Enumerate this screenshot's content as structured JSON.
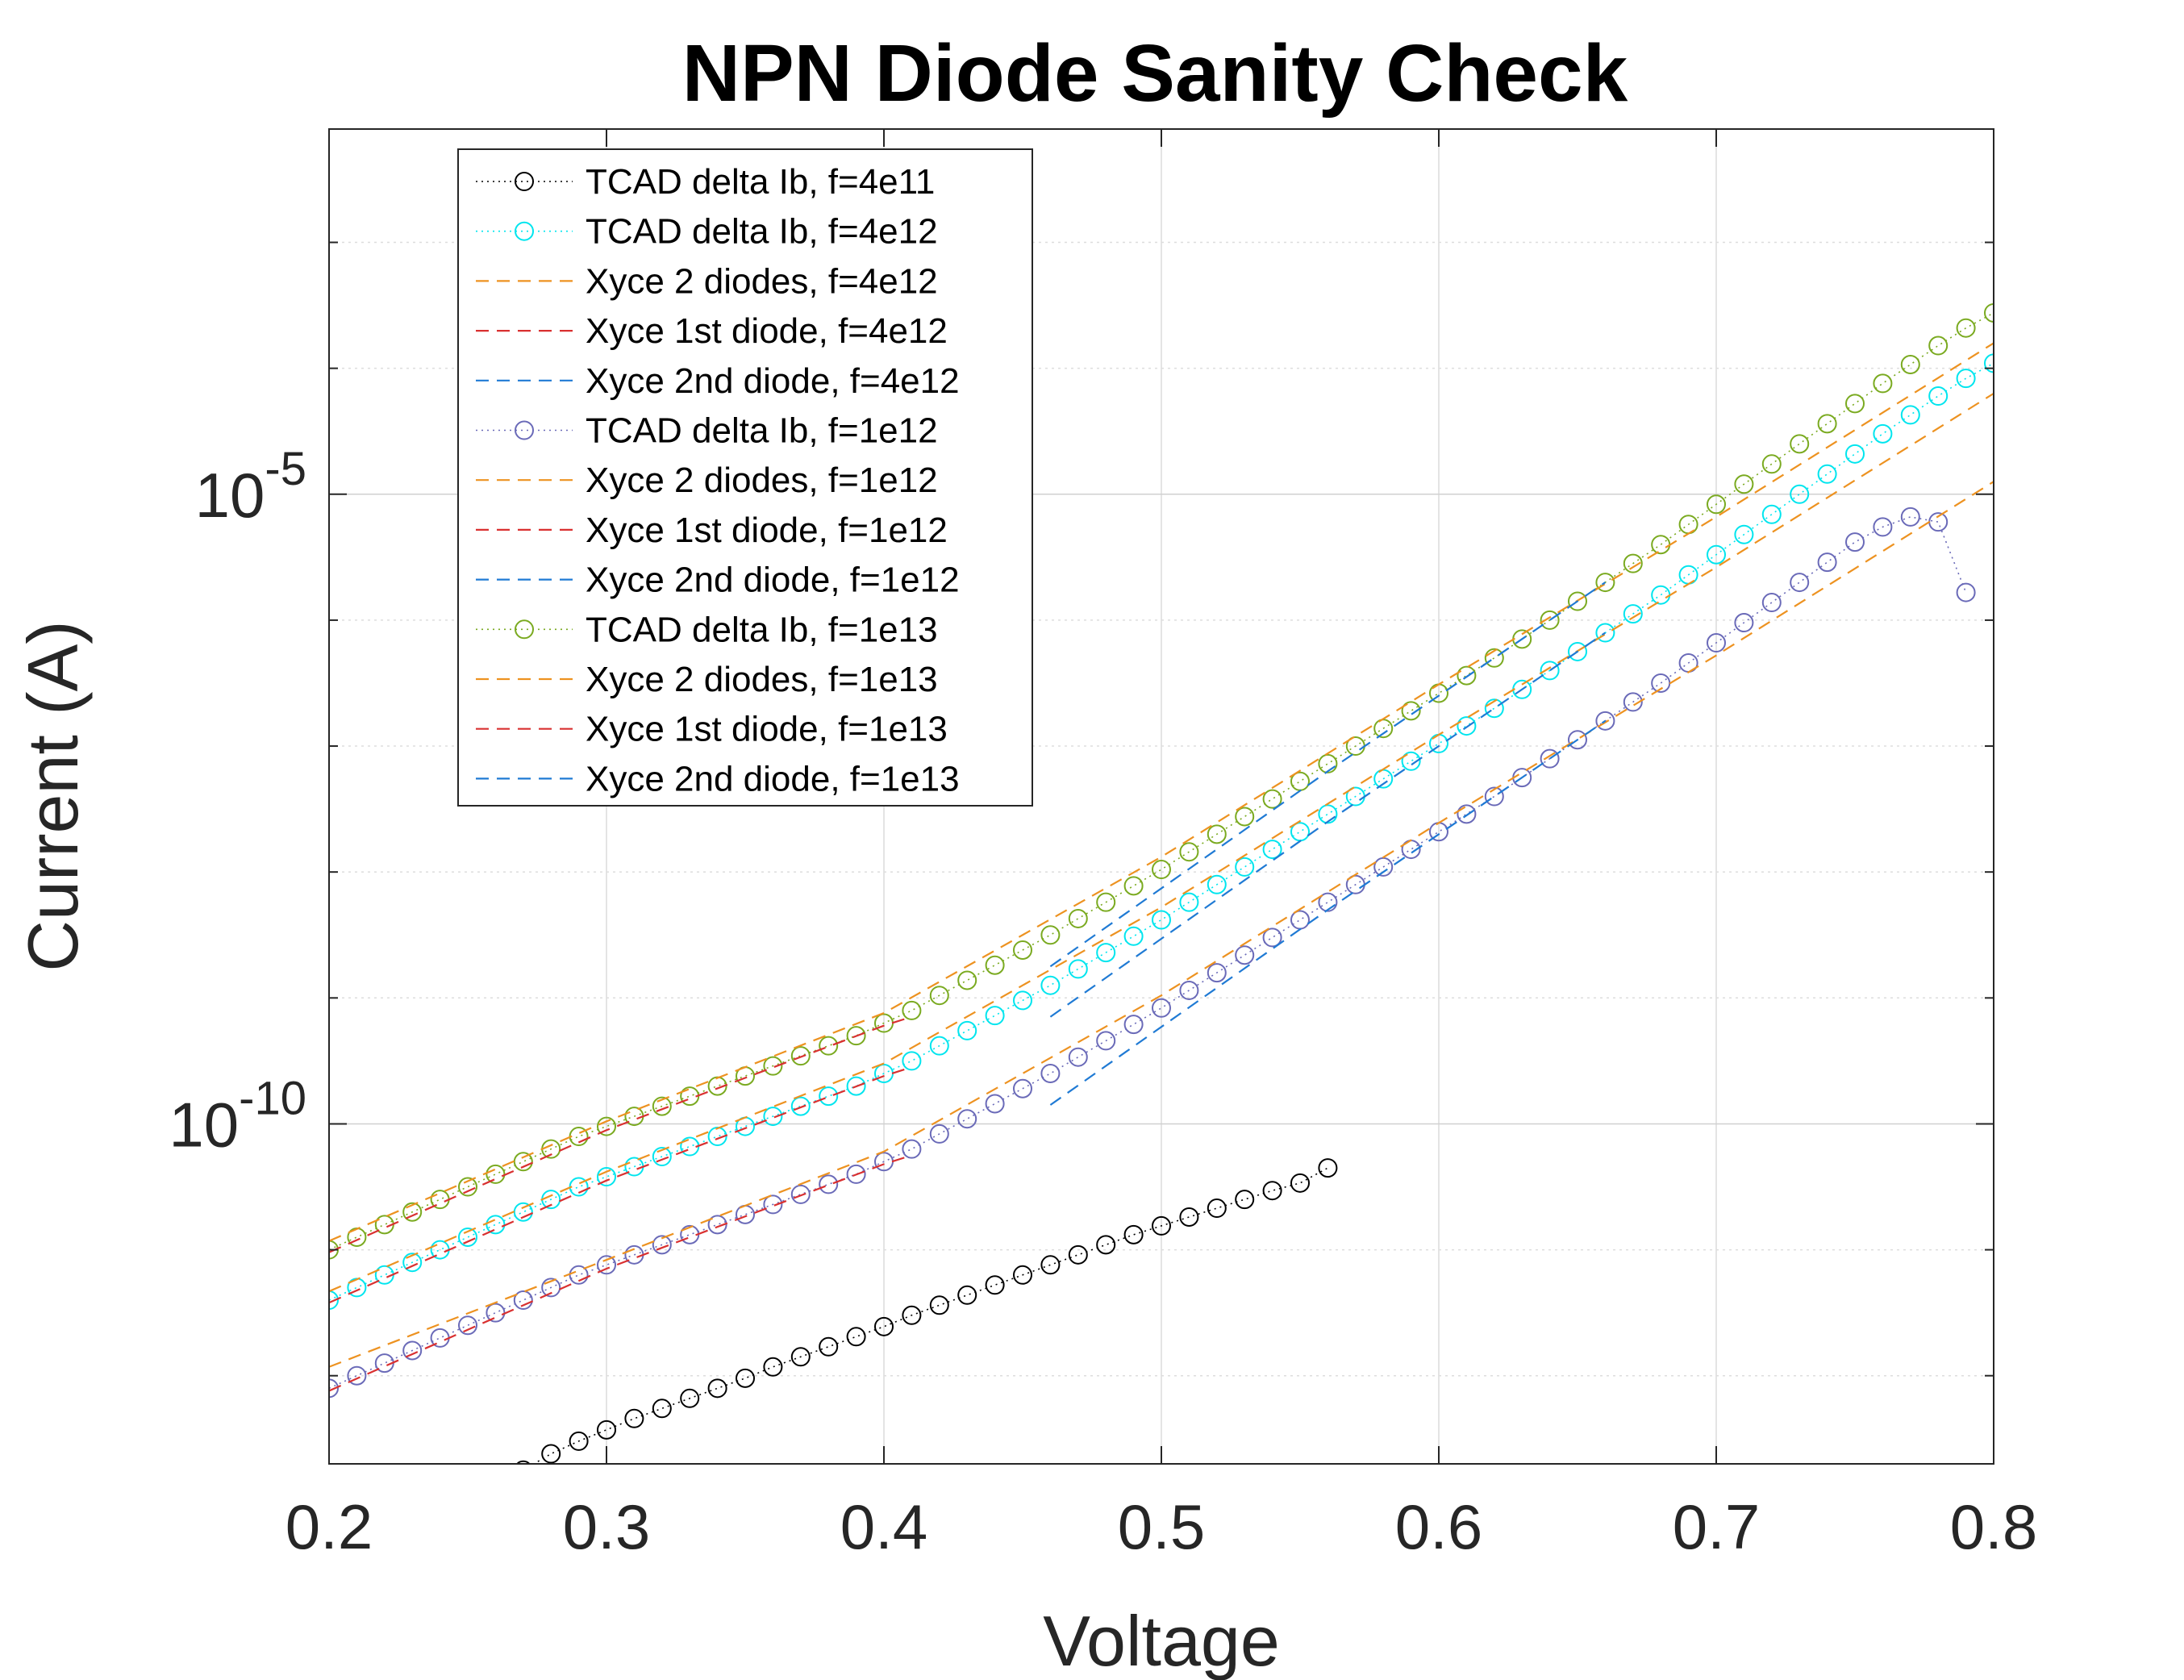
{
  "chart_data": {
    "type": "line",
    "title": "NPN Diode Sanity Check",
    "xlabel": "Voltage",
    "ylabel": "Current (A)",
    "xlim": [
      0.2,
      0.8
    ],
    "ylim_log10": [
      -12.7,
      -2.1
    ],
    "yscale": "log",
    "grid": true,
    "legend_position": "top-left",
    "x_ticks": [
      "0.2",
      "0.3",
      "0.4",
      "0.5",
      "0.6",
      "0.7",
      "0.8"
    ],
    "y_ticks": [
      {
        "base": "10",
        "exp": "-5"
      },
      {
        "base": "10",
        "exp": "-10"
      }
    ],
    "series": [
      {
        "name": "TCAD delta Ib, f=4e11",
        "style": "dotted-marker",
        "color": "#000000",
        "x": [
          0.27,
          0.28,
          0.29,
          0.3,
          0.31,
          0.32,
          0.33,
          0.34,
          0.35,
          0.36,
          0.37,
          0.38,
          0.39,
          0.4,
          0.41,
          0.42,
          0.43,
          0.44,
          0.45,
          0.46,
          0.47,
          0.48,
          0.49,
          0.5,
          0.51,
          0.52,
          0.53,
          0.54,
          0.55,
          0.56
        ],
        "log10_y": [
          -12.75,
          -12.62,
          -12.52,
          -12.43,
          -12.34,
          -12.26,
          -12.18,
          -12.1,
          -12.02,
          -11.93,
          -11.85,
          -11.77,
          -11.69,
          -11.61,
          -11.52,
          -11.44,
          -11.36,
          -11.28,
          -11.2,
          -11.12,
          -11.04,
          -10.96,
          -10.88,
          -10.81,
          -10.74,
          -10.67,
          -10.6,
          -10.53,
          -10.47,
          -10.35
        ]
      },
      {
        "name": "TCAD delta Ib, f=4e12",
        "style": "dotted-marker",
        "color": "#00e5ee",
        "x": [
          0.2,
          0.21,
          0.22,
          0.23,
          0.24,
          0.25,
          0.26,
          0.27,
          0.28,
          0.29,
          0.3,
          0.31,
          0.32,
          0.33,
          0.34,
          0.35,
          0.36,
          0.37,
          0.38,
          0.39,
          0.4,
          0.41,
          0.42,
          0.43,
          0.44,
          0.45,
          0.46,
          0.47,
          0.48,
          0.49,
          0.5,
          0.51,
          0.52,
          0.53,
          0.54,
          0.55,
          0.56,
          0.57,
          0.58,
          0.59,
          0.6,
          0.61,
          0.62,
          0.63,
          0.64,
          0.65,
          0.66,
          0.67,
          0.68,
          0.69,
          0.7,
          0.71,
          0.72,
          0.73,
          0.74,
          0.75,
          0.76,
          0.77,
          0.78,
          0.79,
          0.8
        ],
        "log10_y": [
          -11.4,
          -11.3,
          -11.2,
          -11.1,
          -11.0,
          -10.9,
          -10.8,
          -10.7,
          -10.6,
          -10.5,
          -10.42,
          -10.34,
          -10.26,
          -10.18,
          -10.1,
          -10.02,
          -9.94,
          -9.86,
          -9.78,
          -9.7,
          -9.6,
          -9.5,
          -9.38,
          -9.26,
          -9.14,
          -9.02,
          -8.9,
          -8.77,
          -8.64,
          -8.51,
          -8.38,
          -8.24,
          -8.1,
          -7.96,
          -7.82,
          -7.68,
          -7.54,
          -7.4,
          -7.26,
          -7.12,
          -6.98,
          -6.84,
          -6.7,
          -6.55,
          -6.4,
          -6.25,
          -6.1,
          -5.95,
          -5.8,
          -5.64,
          -5.48,
          -5.32,
          -5.16,
          -5.0,
          -4.84,
          -4.68,
          -4.52,
          -4.37,
          -4.22,
          -4.08,
          -3.96
        ]
      },
      {
        "name": "Xyce 2 diodes, f=4e12",
        "style": "dashed",
        "color": "#ed9220",
        "x": [
          0.2,
          0.3,
          0.4,
          0.5,
          0.6,
          0.7,
          0.8
        ],
        "log10_y": [
          -11.33,
          -10.38,
          -9.52,
          -8.28,
          -6.91,
          -5.58,
          -4.2
        ]
      },
      {
        "name": "Xyce 1st diode, f=4e12",
        "style": "dashed",
        "color": "#d93030",
        "x": [
          0.2,
          0.3,
          0.4,
          0.41
        ],
        "log10_y": [
          -11.42,
          -10.45,
          -9.62,
          -9.55
        ]
      },
      {
        "name": "Xyce 2nd diode, f=4e12",
        "style": "dashed",
        "color": "#1f7ad4",
        "x": [
          0.46,
          0.56,
          0.66
        ],
        "log10_y": [
          -9.15,
          -7.6,
          -6.1
        ]
      },
      {
        "name": "TCAD delta Ib, f=1e12",
        "style": "dotted-marker",
        "color": "#6a6ab8",
        "x": [
          0.2,
          0.21,
          0.22,
          0.23,
          0.24,
          0.25,
          0.26,
          0.27,
          0.28,
          0.29,
          0.3,
          0.31,
          0.32,
          0.33,
          0.34,
          0.35,
          0.36,
          0.37,
          0.38,
          0.39,
          0.4,
          0.41,
          0.42,
          0.43,
          0.44,
          0.45,
          0.46,
          0.47,
          0.48,
          0.49,
          0.5,
          0.51,
          0.52,
          0.53,
          0.54,
          0.55,
          0.56,
          0.57,
          0.58,
          0.59,
          0.6,
          0.61,
          0.62,
          0.63,
          0.64,
          0.65,
          0.66,
          0.67,
          0.68,
          0.69,
          0.7,
          0.71,
          0.72,
          0.73,
          0.74,
          0.75,
          0.76,
          0.77,
          0.78,
          0.79
        ],
        "log10_y": [
          -12.1,
          -12.0,
          -11.9,
          -11.8,
          -11.7,
          -11.6,
          -11.5,
          -11.4,
          -11.3,
          -11.2,
          -11.12,
          -11.04,
          -10.96,
          -10.88,
          -10.8,
          -10.72,
          -10.64,
          -10.56,
          -10.48,
          -10.4,
          -10.3,
          -10.2,
          -10.08,
          -9.96,
          -9.84,
          -9.72,
          -9.6,
          -9.47,
          -9.34,
          -9.21,
          -9.08,
          -8.94,
          -8.8,
          -8.66,
          -8.52,
          -8.38,
          -8.24,
          -8.1,
          -7.96,
          -7.82,
          -7.68,
          -7.54,
          -7.4,
          -7.25,
          -7.1,
          -6.95,
          -6.8,
          -6.65,
          -6.5,
          -6.34,
          -6.18,
          -6.02,
          -5.86,
          -5.7,
          -5.54,
          -5.38,
          -5.26,
          -5.18,
          -5.22,
          -5.78
        ]
      },
      {
        "name": "Xyce 2 diodes, f=1e12",
        "style": "dashed",
        "color": "#ed9220",
        "x": [
          0.2,
          0.3,
          0.4,
          0.5,
          0.6,
          0.7,
          0.8
        ],
        "log10_y": [
          -11.93,
          -11.08,
          -10.22,
          -8.98,
          -7.61,
          -6.28,
          -4.9
        ]
      },
      {
        "name": "Xyce 1st diode, f=1e12",
        "style": "dashed",
        "color": "#d93030",
        "x": [
          0.2,
          0.3,
          0.4,
          0.41
        ],
        "log10_y": [
          -12.12,
          -11.15,
          -10.32,
          -10.25
        ]
      },
      {
        "name": "Xyce 2nd diode, f=1e12",
        "style": "dashed",
        "color": "#1f7ad4",
        "x": [
          0.46,
          0.56,
          0.66
        ],
        "log10_y": [
          -9.85,
          -8.3,
          -6.8
        ]
      },
      {
        "name": "TCAD delta Ib, f=1e13",
        "style": "dotted-marker",
        "color": "#7aaa20",
        "x": [
          0.2,
          0.21,
          0.22,
          0.23,
          0.24,
          0.25,
          0.26,
          0.27,
          0.28,
          0.29,
          0.3,
          0.31,
          0.32,
          0.33,
          0.34,
          0.35,
          0.36,
          0.37,
          0.38,
          0.39,
          0.4,
          0.41,
          0.42,
          0.43,
          0.44,
          0.45,
          0.46,
          0.47,
          0.48,
          0.49,
          0.5,
          0.51,
          0.52,
          0.53,
          0.54,
          0.55,
          0.56,
          0.57,
          0.58,
          0.59,
          0.6,
          0.61,
          0.62,
          0.63,
          0.64,
          0.65,
          0.66,
          0.67,
          0.68,
          0.69,
          0.7,
          0.71,
          0.72,
          0.73,
          0.74,
          0.75,
          0.76,
          0.77,
          0.78,
          0.79,
          0.8
        ],
        "log10_y": [
          -11.0,
          -10.9,
          -10.8,
          -10.7,
          -10.6,
          -10.5,
          -10.4,
          -10.3,
          -10.2,
          -10.1,
          -10.02,
          -9.94,
          -9.86,
          -9.78,
          -9.7,
          -9.62,
          -9.54,
          -9.46,
          -9.38,
          -9.3,
          -9.2,
          -9.1,
          -8.98,
          -8.86,
          -8.74,
          -8.62,
          -8.5,
          -8.37,
          -8.24,
          -8.11,
          -7.98,
          -7.84,
          -7.7,
          -7.56,
          -7.42,
          -7.28,
          -7.14,
          -7.0,
          -6.86,
          -6.72,
          -6.58,
          -6.44,
          -6.3,
          -6.15,
          -6.0,
          -5.85,
          -5.7,
          -5.55,
          -5.4,
          -5.24,
          -5.08,
          -4.92,
          -4.76,
          -4.6,
          -4.44,
          -4.28,
          -4.12,
          -3.97,
          -3.82,
          -3.68,
          -3.56
        ]
      },
      {
        "name": "Xyce 2 diodes, f=1e13",
        "style": "dashed",
        "color": "#ed9220",
        "x": [
          0.2,
          0.3,
          0.4,
          0.5,
          0.6,
          0.7,
          0.8
        ],
        "log10_y": [
          -10.93,
          -9.98,
          -9.12,
          -7.88,
          -6.51,
          -5.18,
          -3.8
        ]
      },
      {
        "name": "Xyce 1st diode, f=1e13",
        "style": "dashed",
        "color": "#d93030",
        "x": [
          0.2,
          0.3,
          0.4,
          0.41
        ],
        "log10_y": [
          -11.02,
          -10.05,
          -9.22,
          -9.15
        ]
      },
      {
        "name": "Xyce 2nd diode, f=1e13",
        "style": "dashed",
        "color": "#1f7ad4",
        "x": [
          0.46,
          0.56,
          0.66
        ],
        "log10_y": [
          -8.75,
          -7.2,
          -5.7
        ]
      }
    ]
  }
}
